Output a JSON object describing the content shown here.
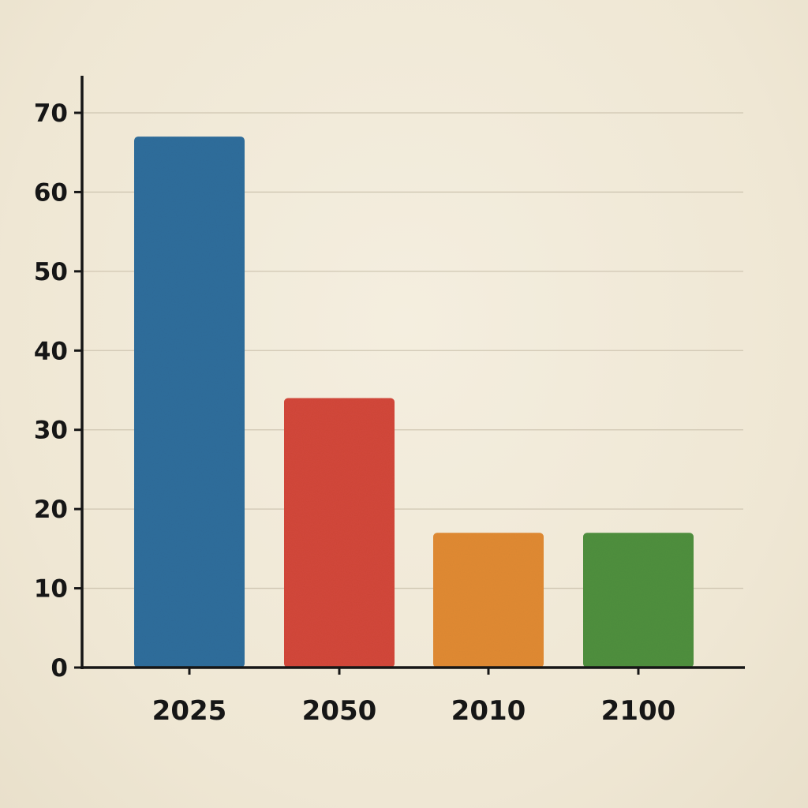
{
  "chart_data": {
    "type": "bar",
    "title": "",
    "xlabel": "",
    "ylabel": "",
    "categories": [
      "2025",
      "2050",
      "2010",
      "2100"
    ],
    "values": [
      67,
      34,
      17,
      17
    ],
    "colors": [
      "#2f6d9b",
      "#d2473a",
      "#e08a32",
      "#4f8f3e"
    ],
    "ylim": [
      0,
      70
    ],
    "yticks": [
      0,
      10,
      20,
      30,
      40,
      50,
      60,
      70
    ],
    "grid": true,
    "legend": "none",
    "axis_color": "#161616",
    "grid_color": "#cfc6b2"
  }
}
